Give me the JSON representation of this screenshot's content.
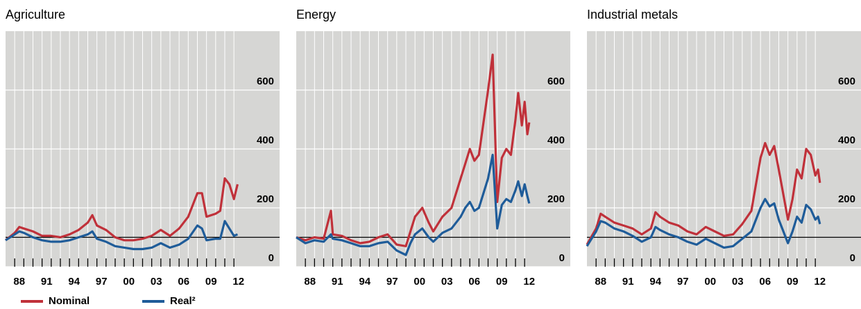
{
  "series_styles": [
    {
      "name": "Nominal",
      "color": "#c0313a"
    },
    {
      "name": "Real²",
      "color": "#1f5c99"
    }
  ],
  "chart_data": [
    {
      "type": "line",
      "title": "Agriculture",
      "x": [
        1987,
        1988,
        1988.5,
        1989,
        1990,
        1991,
        1992,
        1993,
        1994,
        1995,
        1996,
        1996.5,
        1997,
        1998,
        1999,
        2000,
        2001,
        2002,
        2003,
        2004,
        2005,
        2006,
        2007,
        2008,
        2008.5,
        2009,
        2010,
        2010.5,
        2011,
        2011.5,
        2012,
        2012.4
      ],
      "series": [
        {
          "values": [
            90,
            115,
            135,
            130,
            120,
            105,
            105,
            100,
            110,
            125,
            150,
            175,
            140,
            125,
            100,
            90,
            90,
            95,
            105,
            125,
            105,
            130,
            170,
            250,
            250,
            170,
            180,
            190,
            300,
            280,
            230,
            280
          ]
        },
        {
          "values": [
            90,
            110,
            120,
            115,
            100,
            90,
            85,
            85,
            90,
            100,
            110,
            120,
            95,
            85,
            70,
            65,
            60,
            60,
            65,
            80,
            65,
            75,
            95,
            140,
            130,
            90,
            95,
            95,
            155,
            130,
            105,
            110
          ]
        }
      ],
      "xlim": [
        1987,
        2017
      ],
      "ylim": [
        0,
        800
      ],
      "yticks": [
        0,
        200,
        400,
        600
      ],
      "baseline": 100,
      "xticks": [
        {
          "value": 1988,
          "label": "88"
        },
        {
          "value": 1991,
          "label": "91"
        },
        {
          "value": 1994,
          "label": "94"
        },
        {
          "value": 1997,
          "label": "97"
        },
        {
          "value": 2000,
          "label": "00"
        },
        {
          "value": 2003,
          "label": "03"
        },
        {
          "value": 2006,
          "label": "06"
        },
        {
          "value": 2009,
          "label": "09"
        },
        {
          "value": 2012,
          "label": "12"
        }
      ],
      "minor_xticks": [
        1988,
        1989,
        1990,
        1991,
        1992,
        1993,
        1994,
        1995,
        1996,
        1997,
        1998,
        1999,
        2000,
        2001,
        2002,
        2003,
        2004,
        2005,
        2006,
        2007,
        2008,
        2009,
        2010,
        2011,
        2012
      ],
      "grid": true
    },
    {
      "type": "line",
      "title": "Energy",
      "x": [
        1987,
        1988,
        1989,
        1990,
        1990.8,
        1991,
        1992,
        1993,
        1994,
        1995,
        1996,
        1997,
        1998,
        1999,
        1999.5,
        2000,
        2000.8,
        2001.5,
        2002,
        2003,
        2004,
        2005,
        2005.5,
        2006,
        2006.5,
        2007,
        2008,
        2008.5,
        2009,
        2009.5,
        2010,
        2010.5,
        2011,
        2011.3,
        2011.7,
        2012,
        2012.3,
        2012.5
      ],
      "series": [
        {
          "values": [
            100,
            90,
            100,
            95,
            190,
            110,
            105,
            90,
            80,
            85,
            100,
            110,
            75,
            70,
            120,
            170,
            200,
            150,
            120,
            170,
            200,
            300,
            350,
            400,
            360,
            380,
            600,
            720,
            220,
            370,
            400,
            380,
            500,
            590,
            480,
            560,
            450,
            490
          ]
        },
        {
          "values": [
            100,
            80,
            90,
            85,
            110,
            95,
            90,
            80,
            70,
            70,
            80,
            85,
            55,
            40,
            80,
            110,
            130,
            100,
            85,
            115,
            130,
            170,
            200,
            220,
            190,
            200,
            300,
            380,
            130,
            210,
            230,
            220,
            260,
            290,
            240,
            280,
            240,
            215
          ]
        }
      ],
      "xlim": [
        1987,
        2017
      ],
      "ylim": [
        0,
        800
      ],
      "yticks": [
        0,
        200,
        400,
        600
      ],
      "baseline": 100,
      "xticks": [
        {
          "value": 1988,
          "label": "88"
        },
        {
          "value": 1991,
          "label": "91"
        },
        {
          "value": 1994,
          "label": "94"
        },
        {
          "value": 1997,
          "label": "97"
        },
        {
          "value": 2000,
          "label": "00"
        },
        {
          "value": 2003,
          "label": "03"
        },
        {
          "value": 2006,
          "label": "06"
        },
        {
          "value": 2009,
          "label": "09"
        },
        {
          "value": 2012,
          "label": "12"
        }
      ],
      "minor_xticks": [
        1988,
        1989,
        1990,
        1991,
        1992,
        1993,
        1994,
        1995,
        1996,
        1997,
        1998,
        1999,
        2000,
        2001,
        2002,
        2003,
        2004,
        2005,
        2006,
        2007,
        2008,
        2009,
        2010,
        2011,
        2012
      ],
      "grid": true
    },
    {
      "type": "line",
      "title": "Industrial metals",
      "x": [
        1987,
        1988,
        1988.5,
        1989,
        1990,
        1991,
        1992,
        1993,
        1994,
        1994.5,
        1995,
        1996,
        1997,
        1998,
        1999,
        2000,
        2001,
        2002,
        2003,
        2004,
        2005,
        2006,
        2006.5,
        2007,
        2007.5,
        2008,
        2009,
        2009.5,
        2010,
        2010.5,
        2011,
        2011.5,
        2012,
        2012.3,
        2012.5
      ],
      "series": [
        {
          "values": [
            75,
            130,
            180,
            170,
            150,
            140,
            130,
            110,
            130,
            185,
            170,
            150,
            140,
            120,
            110,
            135,
            120,
            105,
            110,
            145,
            190,
            370,
            420,
            380,
            410,
            330,
            160,
            230,
            330,
            300,
            400,
            380,
            310,
            330,
            285
          ]
        },
        {
          "values": [
            70,
            120,
            155,
            150,
            130,
            120,
            105,
            85,
            100,
            135,
            125,
            110,
            100,
            85,
            75,
            95,
            80,
            65,
            70,
            95,
            120,
            200,
            230,
            205,
            215,
            160,
            80,
            120,
            170,
            150,
            210,
            195,
            160,
            170,
            145
          ]
        }
      ],
      "xlim": [
        1987,
        2017
      ],
      "ylim": [
        0,
        800
      ],
      "yticks": [
        0,
        200,
        400,
        600
      ],
      "baseline": 100,
      "xticks": [
        {
          "value": 1988,
          "label": "88"
        },
        {
          "value": 1991,
          "label": "91"
        },
        {
          "value": 1994,
          "label": "94"
        },
        {
          "value": 1997,
          "label": "97"
        },
        {
          "value": 2000,
          "label": "00"
        },
        {
          "value": 2003,
          "label": "03"
        },
        {
          "value": 2006,
          "label": "06"
        },
        {
          "value": 2009,
          "label": "09"
        },
        {
          "value": 2012,
          "label": "12"
        }
      ],
      "minor_xticks": [
        1988,
        1989,
        1990,
        1991,
        1992,
        1993,
        1994,
        1995,
        1996,
        1997,
        1998,
        1999,
        2000,
        2001,
        2002,
        2003,
        2004,
        2005,
        2006,
        2007,
        2008,
        2009,
        2010,
        2011,
        2012
      ],
      "grid": true
    }
  ]
}
